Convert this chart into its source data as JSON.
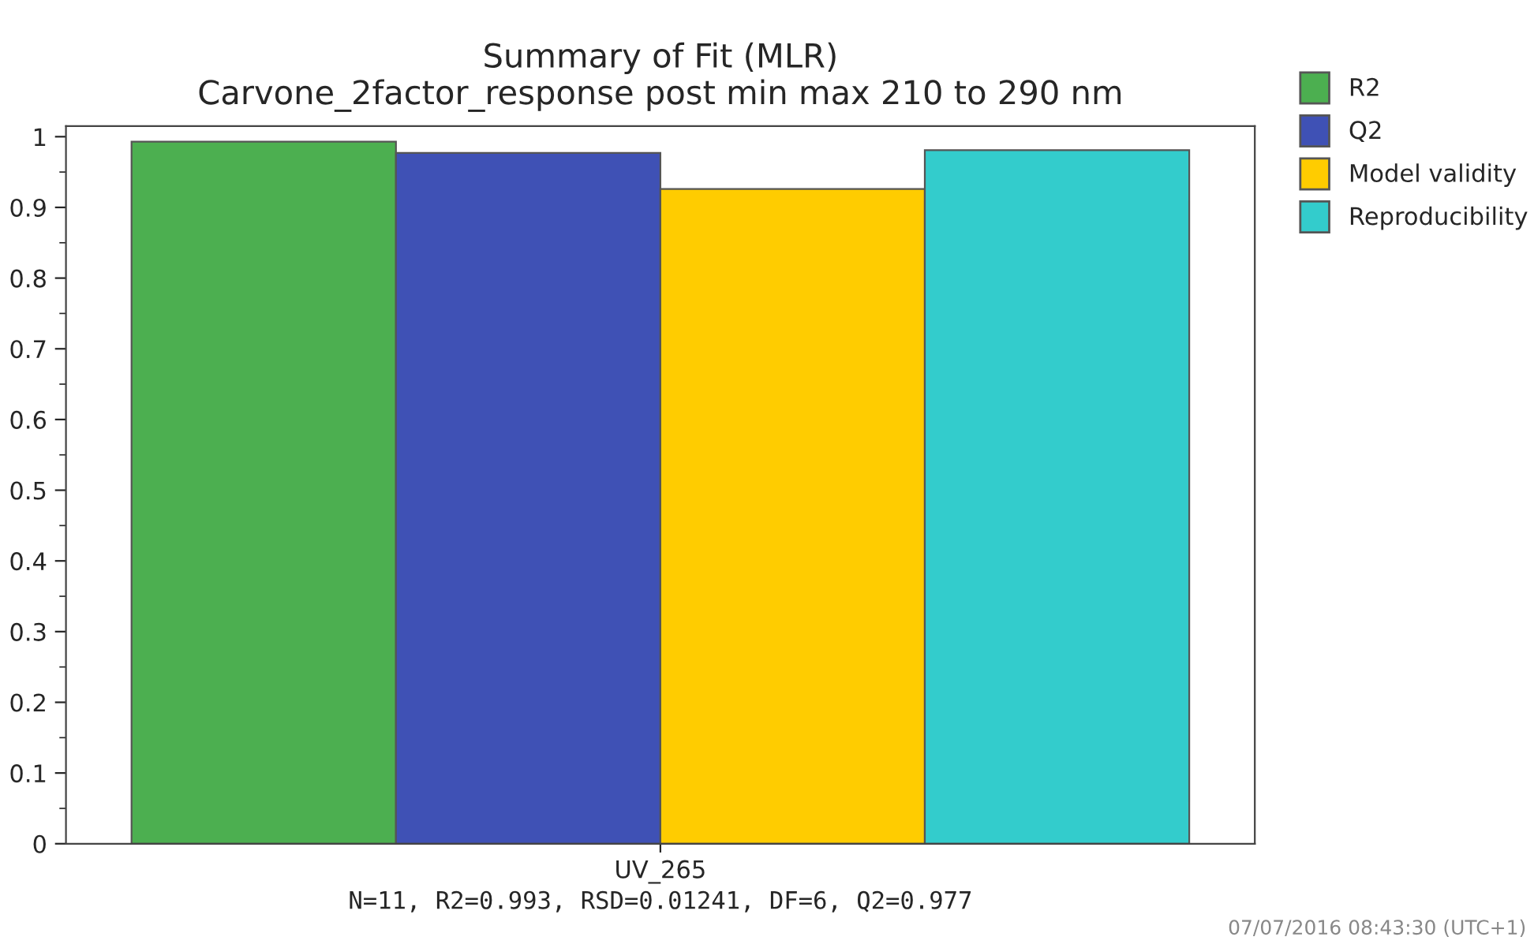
{
  "chart_data": {
    "type": "bar",
    "title": "Summary of Fit (MLR)\nCarvone_2factor_response post min max 210 to 290 nm",
    "categories": [
      "UV_265"
    ],
    "series": [
      {
        "name": "R2",
        "color": "#4caf50",
        "values": [
          0.993
        ]
      },
      {
        "name": "Q2",
        "color": "#3f51b5",
        "values": [
          0.977
        ]
      },
      {
        "name": "Model validity",
        "color": "#ffcc00",
        "values": [
          0.926
        ]
      },
      {
        "name": "Reproducibility",
        "color": "#33cccc",
        "values": [
          0.981
        ]
      }
    ],
    "ylim": [
      0,
      1.015
    ],
    "yticks": [
      0,
      0.1,
      0.2,
      0.3,
      0.4,
      0.5,
      0.6,
      0.7,
      0.8,
      0.9,
      1
    ],
    "grid": false,
    "legend": "top right",
    "annotations": [
      "N=11, R2=0.993, RSD=0.01241, DF=6, Q2=0.977",
      "07/07/2016 08:43:30 (UTC+1)"
    ]
  }
}
